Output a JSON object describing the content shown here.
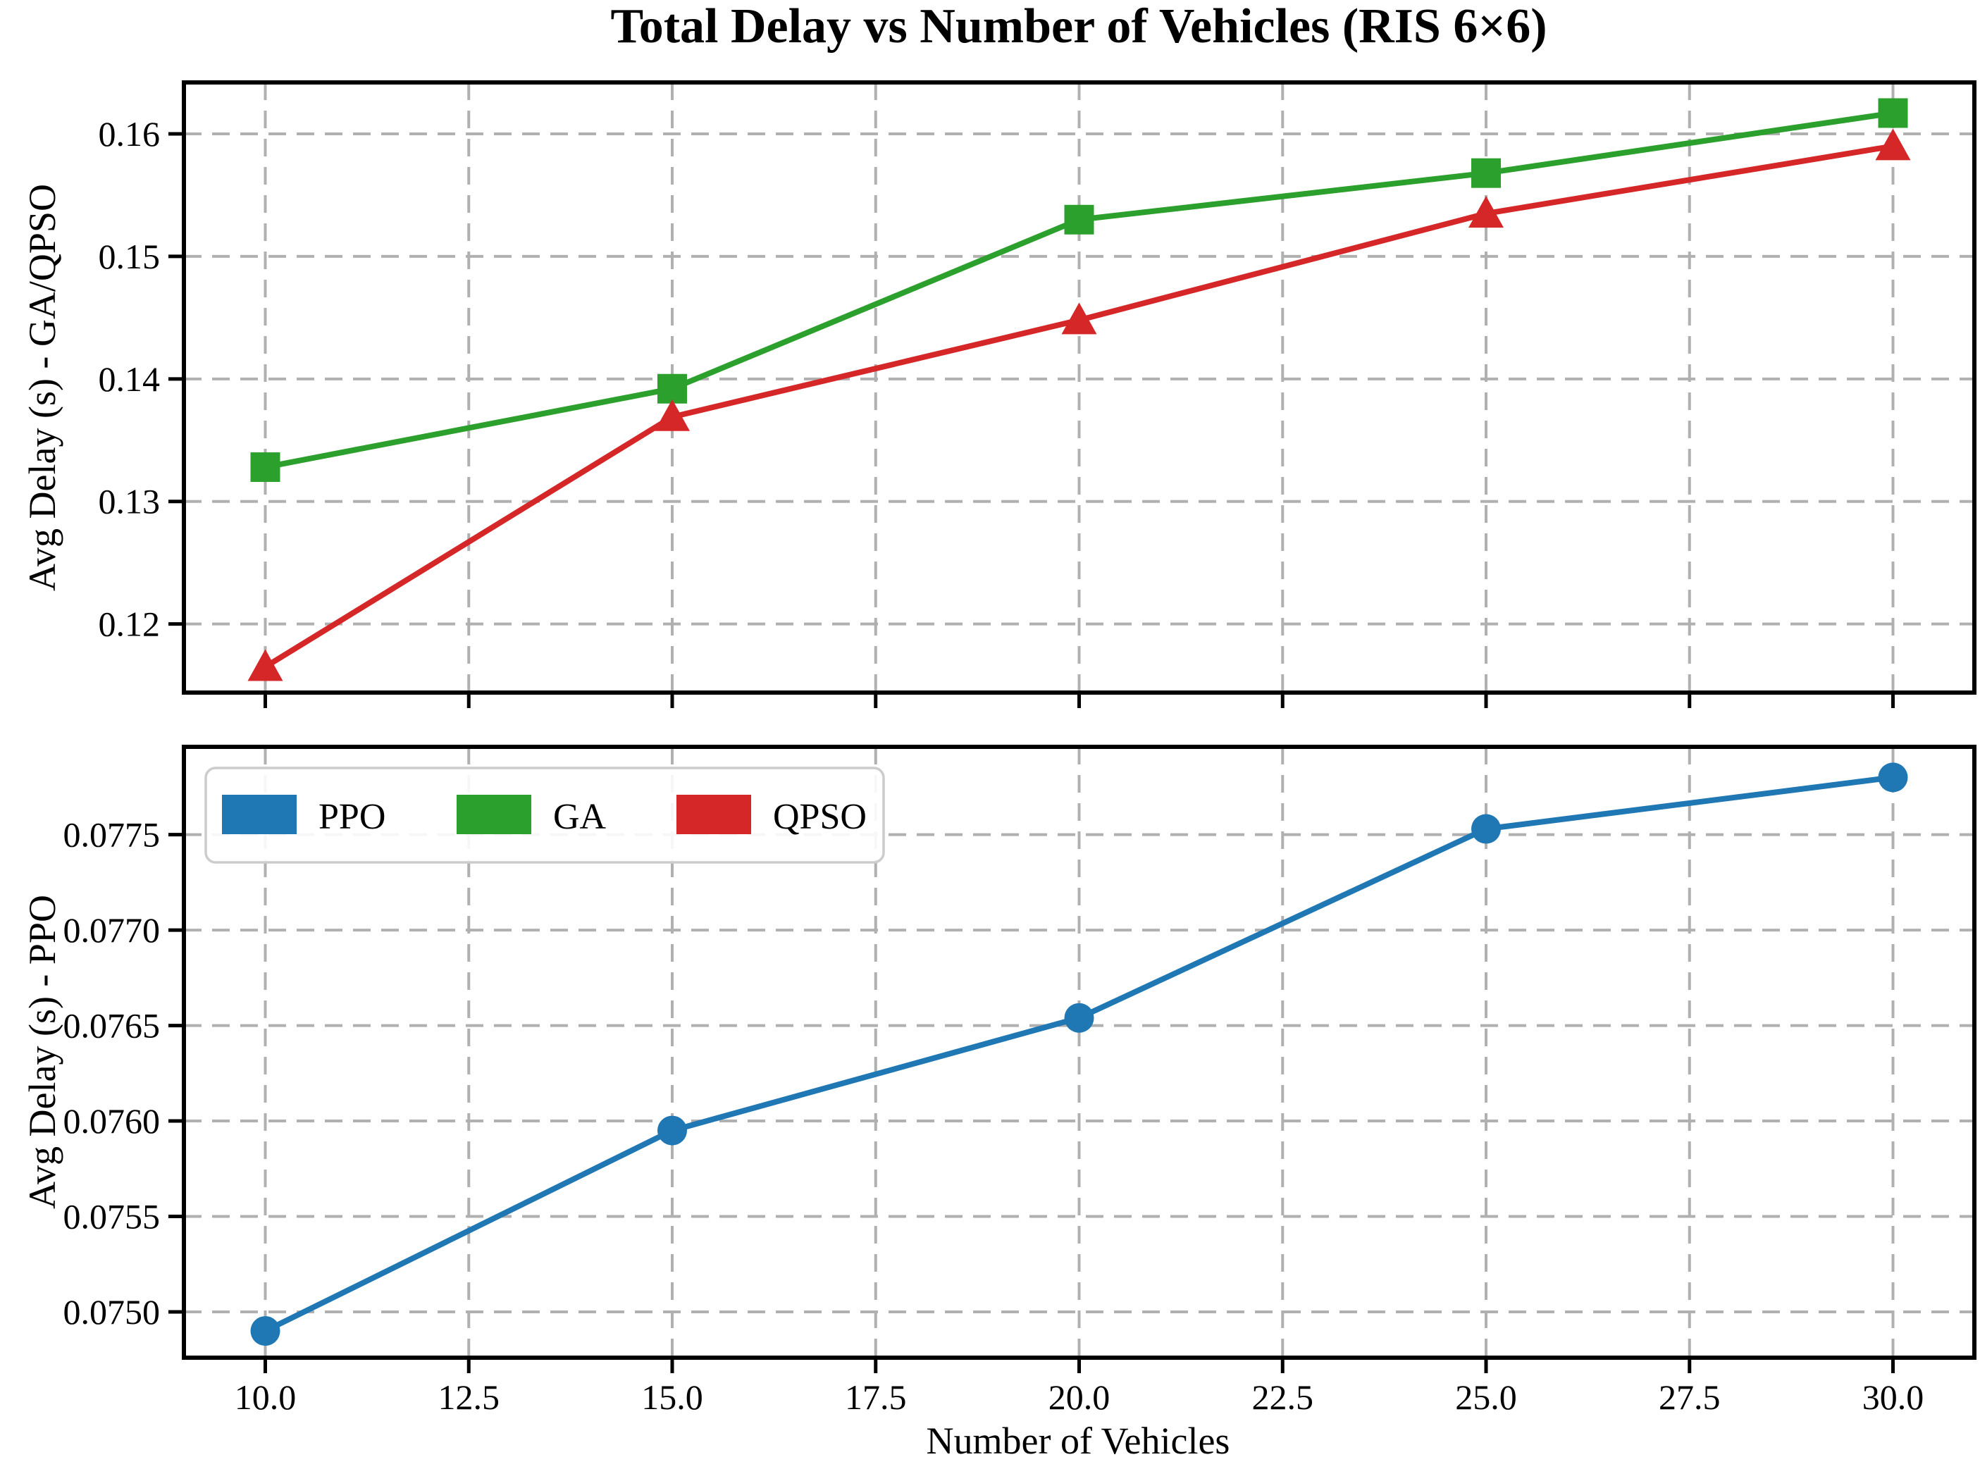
{
  "figure": {
    "title": "Total Delay vs Number of Vehicles (RIS 6×6)",
    "xlabel": "Number of Vehicles"
  },
  "legend": {
    "location": "upper left of bottom panel",
    "entries": [
      {
        "label": "PPO",
        "color": "#1f77b4"
      },
      {
        "label": "GA",
        "color": "#2ca02c"
      },
      {
        "label": "QPSO",
        "color": "#d62728"
      }
    ]
  },
  "colors": {
    "ppo": "#1f77b4",
    "ga": "#2ca02c",
    "qpso": "#d62728",
    "grid": "#b0b0b0",
    "spine": "#000000",
    "legend_border": "#cccccc"
  },
  "chart_data": [
    {
      "type": "line",
      "panel": "top",
      "ylabel": "Avg Delay (s) - GA/QPSO",
      "x": [
        10,
        15,
        20,
        25,
        30
      ],
      "series": [
        {
          "name": "GA",
          "color": "#2ca02c",
          "marker": "square",
          "values": [
            0.1328,
            0.1392,
            0.153,
            0.1568,
            0.1617
          ]
        },
        {
          "name": "QPSO",
          "color": "#d62728",
          "marker": "triangle-up",
          "values": [
            0.1165,
            0.1369,
            0.1448,
            0.1535,
            0.159
          ]
        }
      ],
      "xlim": [
        9,
        31
      ],
      "ylim": [
        0.1144,
        0.1642
      ],
      "xticks": [
        10,
        12.5,
        15,
        17.5,
        20,
        22.5,
        25,
        27.5,
        30
      ],
      "xtick_labels": [],
      "yticks": [
        0.12,
        0.13,
        0.14,
        0.15,
        0.16
      ],
      "ytick_labels": [
        "0.12",
        "0.13",
        "0.14",
        "0.15",
        "0.16"
      ],
      "grid": true,
      "grid_style": "dashed"
    },
    {
      "type": "line",
      "panel": "bottom",
      "ylabel": "Avg Delay (s) - PPO",
      "xlabel": "Number of Vehicles",
      "x": [
        10,
        15,
        20,
        25,
        30
      ],
      "series": [
        {
          "name": "PPO",
          "color": "#1f77b4",
          "marker": "circle",
          "values": [
            0.0749,
            0.07595,
            0.07654,
            0.07753,
            0.0778
          ]
        }
      ],
      "xlim": [
        9,
        31
      ],
      "ylim": [
        0.07476,
        0.07796
      ],
      "xticks": [
        10,
        12.5,
        15,
        17.5,
        20,
        22.5,
        25,
        27.5,
        30
      ],
      "xtick_labels": [
        "10.0",
        "12.5",
        "15.0",
        "17.5",
        "20.0",
        "22.5",
        "25.0",
        "27.5",
        "30.0"
      ],
      "yticks": [
        0.075,
        0.0755,
        0.076,
        0.0765,
        0.077,
        0.0775
      ],
      "ytick_labels": [
        "0.0750",
        "0.0755",
        "0.0760",
        "0.0765",
        "0.0770",
        "0.0775"
      ],
      "grid": true,
      "grid_style": "dashed"
    }
  ]
}
